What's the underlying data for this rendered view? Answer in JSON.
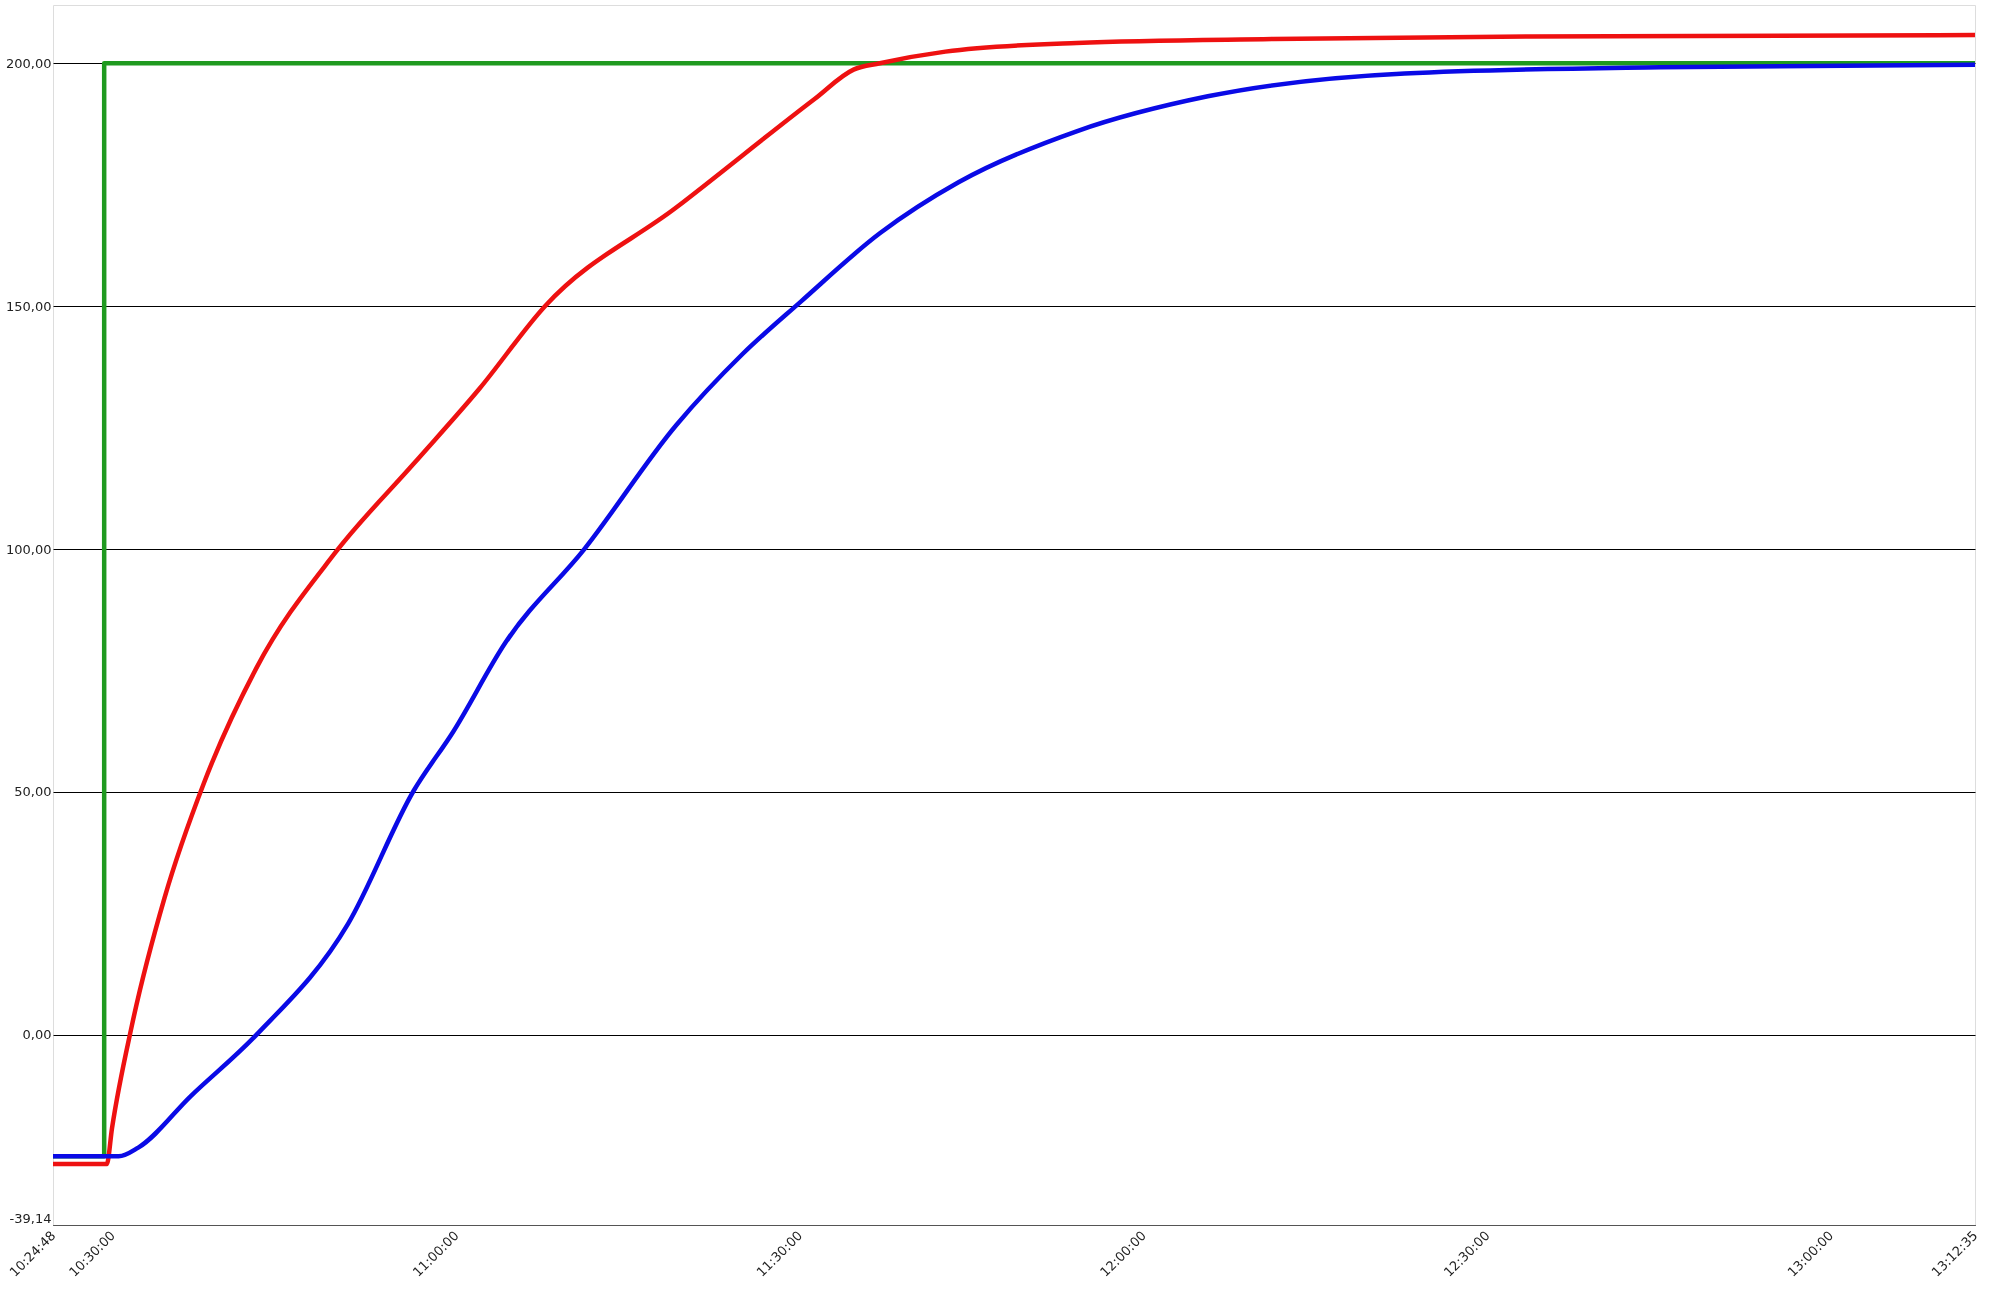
{
  "chart_data": {
    "type": "line",
    "xlim": [
      10.41333,
      13.20972
    ],
    "ylim": [
      -39.14,
      212
    ],
    "xticks": [
      {
        "value": 10.41333,
        "label": "10:24:48"
      },
      {
        "value": 10.5,
        "label": "10:30:00"
      },
      {
        "value": 11,
        "label": "11:00:00"
      },
      {
        "value": 11.5,
        "label": "11:30:00"
      },
      {
        "value": 12,
        "label": "12:00:00"
      },
      {
        "value": 12.5,
        "label": "12:30:00"
      },
      {
        "value": 13,
        "label": "13:00:00"
      },
      {
        "value": 13.20972,
        "label": "13:12:35"
      }
    ],
    "yticks": [
      {
        "value": -39.14,
        "label": "-39,14"
      },
      {
        "value": 0,
        "label": "0,00"
      },
      {
        "value": 50,
        "label": "50,00"
      },
      {
        "value": 100,
        "label": "100,00"
      },
      {
        "value": 150,
        "label": "150,00"
      },
      {
        "value": 200,
        "label": "200,00"
      }
    ],
    "grid": "y",
    "marker": "none",
    "line_style": "solid",
    "series": [
      {
        "type": "step",
        "color": "#1f9a1f",
        "x": [
          10.41333,
          10.4878,
          13.2097
        ],
        "values": [
          -25,
          200,
          200
        ]
      },
      {
        "color": "#ee1111",
        "x": [
          10.41333,
          10.4916,
          10.4992,
          10.5279,
          10.5756,
          10.6328,
          10.7092,
          10.8237,
          10.9383,
          11.0337,
          11.1291,
          11.32,
          11.5209,
          11.5781,
          11.6163,
          11.7117,
          11.9026,
          12.1889,
          12.5608,
          13.2097
        ],
        "values": [
          -26.6,
          -26.6,
          -19.2,
          1.8,
          28.2,
          51.8,
          75.5,
          99.2,
          117.6,
          133,
          150,
          170.3,
          192.6,
          198.7,
          200,
          202.4,
          204.2,
          205,
          205.5,
          205.8
        ]
      },
      {
        "color": "#0a0ae6",
        "x": [
          10.41333,
          10.5088,
          10.5374,
          10.6138,
          10.7092,
          10.8428,
          10.9383,
          10.9956,
          11.0719,
          11.1864,
          11.32,
          11.4155,
          11.5018,
          11.6163,
          11.7308,
          11.9026,
          12.0935,
          12.3799,
          12.7516,
          13.2097
        ],
        "values": [
          -25,
          -25,
          -23.2,
          -12.6,
          0,
          22.9,
          50.3,
          62.4,
          80.8,
          100,
          125.5,
          140,
          151,
          165,
          175.5,
          186,
          193.2,
          197.9,
          199.2,
          199.7
        ]
      }
    ]
  }
}
